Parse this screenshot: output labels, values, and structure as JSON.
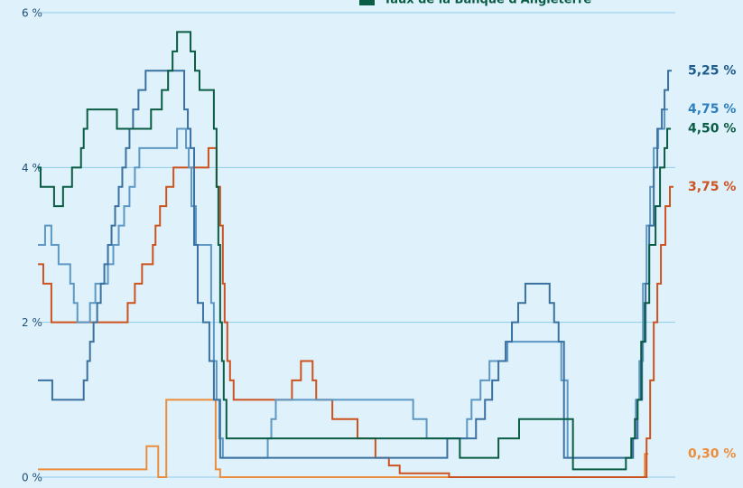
{
  "chart_data": {
    "type": "line",
    "step": true,
    "legend": "top",
    "xlim": [
      0,
      710
    ],
    "ylim": [
      0,
      6
    ],
    "yticks": [
      {
        "value": 0,
        "label": "0 %"
      },
      {
        "value": 2,
        "label": "2 %"
      },
      {
        "value": 4,
        "label": "4 %"
      },
      {
        "value": 6,
        "label": "6 %"
      }
    ],
    "grid": true,
    "series": [
      {
        "color": "#ec8d3c",
        "x": [
          0,
          121,
          134,
          143,
          198,
          203,
          676
        ],
        "values": [
          0.1,
          0.4,
          0,
          1,
          0.1,
          0,
          0.3
        ]
      },
      {
        "color": "#cc5220",
        "x": [
          0,
          6,
          15,
          100,
          108,
          116,
          128,
          131,
          136,
          143,
          151,
          190,
          199,
          203,
          206,
          208,
          211,
          214,
          218,
          283,
          293,
          306,
          310,
          328,
          356,
          376,
          391,
          403,
          458,
          678,
          682,
          686,
          690,
          694,
          699,
          704
        ],
        "values": [
          2.75,
          2.5,
          2,
          2.25,
          2.5,
          2.75,
          3,
          3.25,
          3.5,
          3.75,
          4,
          4.25,
          3.75,
          3.25,
          2.5,
          2,
          1.5,
          1.25,
          1,
          1.25,
          1.5,
          1.25,
          1,
          0.75,
          0.5,
          0.25,
          0.15,
          0.05,
          0,
          0.5,
          1.25,
          2,
          2.5,
          3,
          3.5,
          3.75
        ]
      },
      {
        "color": "#5d97c4",
        "x": [
          0,
          8,
          15,
          23,
          36,
          40,
          44,
          58,
          64,
          78,
          84,
          90,
          96,
          102,
          108,
          113,
          155,
          165,
          168,
          171,
          176,
          193,
          196,
          199,
          202,
          206,
          256,
          260,
          265,
          418,
          433,
          478,
          483,
          493,
          503,
          523,
          583,
          590,
          661,
          666,
          670,
          674,
          678,
          682,
          686,
          691,
          698
        ],
        "values": [
          3,
          3.25,
          3,
          2.75,
          2.5,
          2.25,
          2,
          2.25,
          2.5,
          2.75,
          3,
          3.25,
          3.5,
          3.75,
          4,
          4.25,
          4.5,
          4.25,
          4,
          3.5,
          3,
          2.25,
          1.5,
          1,
          0.5,
          0.25,
          0.5,
          0.75,
          1,
          0.75,
          0.5,
          0.75,
          1,
          1.25,
          1.5,
          1.75,
          1.25,
          0.25,
          0.5,
          1,
          1.5,
          2.5,
          3.25,
          3.75,
          4.25,
          4.5,
          4.75
        ]
      },
      {
        "color": "#3a71a0",
        "x": [
          0,
          16,
          51,
          55,
          58,
          62,
          66,
          70,
          74,
          78,
          82,
          86,
          90,
          94,
          98,
          102,
          106,
          112,
          120,
          163,
          167,
          170,
          174,
          178,
          184,
          191,
          196,
          203,
          456,
          488,
          498,
          506,
          513,
          521,
          528,
          535,
          543,
          570,
          575,
          580,
          586,
          663,
          668,
          673,
          677,
          681,
          686,
          690,
          695,
          698,
          702
        ],
        "values": [
          1.25,
          1,
          1.25,
          1.5,
          1.75,
          2,
          2.25,
          2.5,
          2.75,
          3,
          3.25,
          3.5,
          3.75,
          4,
          4.25,
          4.5,
          4.75,
          5,
          5.25,
          4.75,
          4.5,
          4.25,
          3,
          2.25,
          2,
          1.5,
          1,
          0.25,
          0.5,
          0.75,
          1,
          1.25,
          1.5,
          1.75,
          2,
          2.25,
          2.5,
          2.25,
          2,
          1.75,
          0.25,
          0.5,
          1,
          1.75,
          2.5,
          3.25,
          4,
          4.5,
          4.75,
          5,
          5.25
        ]
      },
      {
        "name": "Taux de la Banque d'Angleterre",
        "color": "#0a5c44",
        "x": [
          0,
          3,
          18,
          28,
          38,
          48,
          51,
          55,
          88,
          126,
          138,
          145,
          150,
          155,
          170,
          175,
          180,
          196,
          199,
          201,
          203,
          205,
          207,
          210,
          470,
          513,
          536,
          596,
          655,
          661,
          665,
          668,
          672,
          676,
          681,
          688,
          693,
          698,
          701
        ],
        "values": [
          4,
          3.75,
          3.5,
          3.75,
          4,
          4.25,
          4.5,
          4.75,
          4.5,
          4.75,
          5,
          5.25,
          5.5,
          5.75,
          5.5,
          5.25,
          5,
          4.5,
          3.75,
          3,
          2,
          1.5,
          1,
          0.5,
          0.25,
          0.5,
          0.75,
          0.1,
          0.25,
          0.5,
          0.75,
          1,
          1.75,
          2.25,
          3,
          3.5,
          4,
          4.25,
          4.5
        ]
      }
    ],
    "annotations": [
      {
        "text": "5,25 %",
        "value": 5.25,
        "color": "#1e5b8e"
      },
      {
        "text": "4,75 %",
        "value": 4.75,
        "color": "#2f7fbf"
      },
      {
        "text": "4,50 %",
        "value": 4.5,
        "color": "#0a5c44"
      },
      {
        "text": "3,75 %",
        "value": 3.75,
        "color": "#cc5220"
      },
      {
        "text": "0,30 %",
        "value": 0.3,
        "color": "#ec8d3c"
      }
    ]
  }
}
